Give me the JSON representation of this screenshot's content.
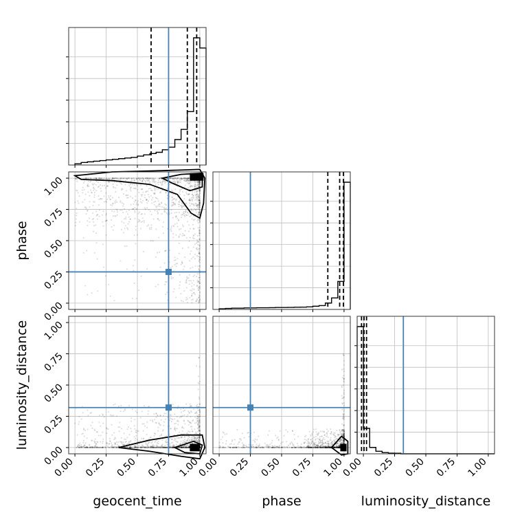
{
  "chart_data": {
    "type": "corner",
    "parameters": [
      "geocent_time",
      "phase",
      "luminosity_distance"
    ],
    "axis_labels": {
      "x": [
        "geocent_time",
        "phase",
        "luminosity_distance"
      ],
      "y": [
        "",
        "phase",
        "luminosity_distance"
      ]
    },
    "tick_labels": [
      "0.00",
      "0.25",
      "0.50",
      "0.75",
      "1.00"
    ],
    "axis_range": [
      -0.05,
      1.05
    ],
    "grid": true,
    "truth": {
      "color": "#4682b4",
      "values": {
        "geocent_time": 0.75,
        "phase": 0.25,
        "luminosity_distance": 0.32
      }
    },
    "quantile_lines": {
      "style": "dashed",
      "geocent_time": [
        0.61,
        0.9,
        0.975
      ],
      "phase": [
        0.87,
        0.965,
        0.995
      ],
      "luminosity_distance": [
        -0.015,
        0.005,
        0.025
      ]
    },
    "histograms": [
      {
        "parameter": "geocent_time",
        "bin_edges": [
          0.0,
          0.05,
          0.1,
          0.15,
          0.2,
          0.25,
          0.3,
          0.35,
          0.4,
          0.45,
          0.5,
          0.55,
          0.6,
          0.65,
          0.7,
          0.75,
          0.8,
          0.85,
          0.9,
          0.95,
          1.0,
          1.05
        ],
        "counts": [
          0.01,
          0.02,
          0.025,
          0.03,
          0.035,
          0.04,
          0.045,
          0.05,
          0.055,
          0.06,
          0.07,
          0.08,
          0.09,
          0.1,
          0.12,
          0.14,
          0.2,
          0.28,
          0.42,
          1.0,
          0.92
        ]
      },
      {
        "parameter": "phase",
        "bin_edges": [
          0.0,
          0.05,
          0.1,
          0.15,
          0.2,
          0.25,
          0.3,
          0.35,
          0.4,
          0.45,
          0.5,
          0.55,
          0.6,
          0.65,
          0.7,
          0.75,
          0.8,
          0.85,
          0.9,
          0.95,
          1.0,
          1.05
        ],
        "counts": [
          0.005,
          0.008,
          0.01,
          0.01,
          0.012,
          0.012,
          0.013,
          0.013,
          0.014,
          0.015,
          0.015,
          0.016,
          0.017,
          0.018,
          0.02,
          0.025,
          0.03,
          0.05,
          0.09,
          0.22,
          1.0
        ]
      },
      {
        "parameter": "luminosity_distance",
        "bin_edges": [
          -0.05,
          0.0,
          0.05,
          0.1,
          0.15,
          0.2,
          0.25,
          0.3,
          0.35,
          0.4,
          0.45,
          0.5,
          0.55,
          0.6,
          0.65,
          0.7,
          0.75,
          0.8,
          0.85,
          0.9,
          0.95,
          1.0,
          1.05
        ],
        "counts": [
          1.0,
          0.2,
          0.05,
          0.02,
          0.01,
          0.005,
          0.004,
          0,
          0,
          0,
          0,
          0,
          0,
          0,
          0,
          0,
          0,
          0,
          0,
          0,
          0,
          0
        ]
      }
    ],
    "scatter_panels": [
      {
        "x": "geocent_time",
        "y": "phase"
      },
      {
        "x": "geocent_time",
        "y": "luminosity_distance"
      },
      {
        "x": "phase",
        "y": "luminosity_distance"
      }
    ]
  }
}
